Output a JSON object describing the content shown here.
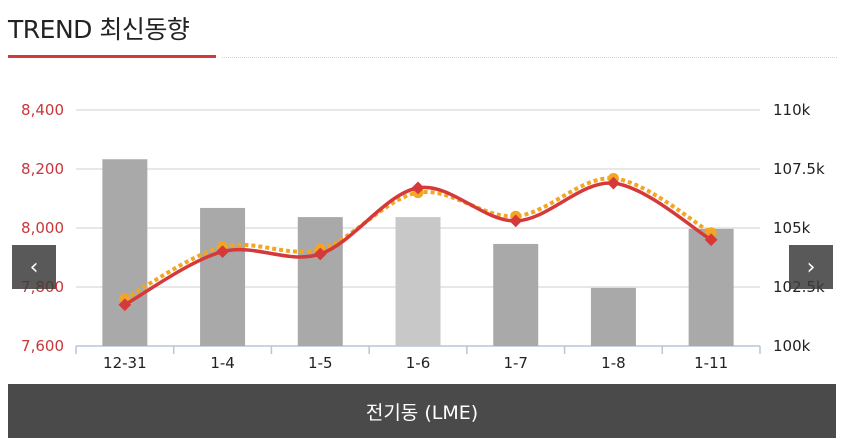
{
  "header": {
    "title": "TREND 최신동향"
  },
  "nav": {
    "prev_icon": "‹",
    "next_icon": "›"
  },
  "footer": {
    "label": "전기동 (LME)"
  },
  "colors": {
    "accent": "#d6393a",
    "bar": "#a9a9a9",
    "bar_highlight": "#c8c8c8",
    "line": "#d6393a",
    "line_dotted": "#f2a623",
    "left_axis": "#c8373a"
  },
  "chart_data": {
    "type": "bar",
    "categories": [
      "12-31",
      "1-4",
      "1-5",
      "1-6",
      "1-7",
      "1-8",
      "1-11"
    ],
    "series": [
      {
        "axis": "left",
        "type": "bar",
        "values": [
          8233,
          8068,
          8037,
          8037,
          7946,
          7797,
          7997
        ]
      },
      {
        "axis": "right",
        "type": "line",
        "values": [
          101750,
          104000,
          103900,
          106700,
          105300,
          106900,
          104500
        ]
      },
      {
        "axis": "right",
        "type": "line",
        "style": "dotted",
        "values": [
          102000,
          104200,
          104100,
          106500,
          105500,
          107100,
          104800
        ]
      }
    ],
    "y_left": {
      "range": [
        7600,
        8400
      ],
      "ticks": [
        "7,600",
        "7,800",
        "8,000",
        "8,200",
        "8,400"
      ]
    },
    "y_right": {
      "range": [
        100000,
        110000
      ],
      "ticks": [
        "100k",
        "102.5k",
        "105k",
        "107.5k",
        "110k"
      ]
    },
    "highlight_index": 3,
    "grid": true
  }
}
